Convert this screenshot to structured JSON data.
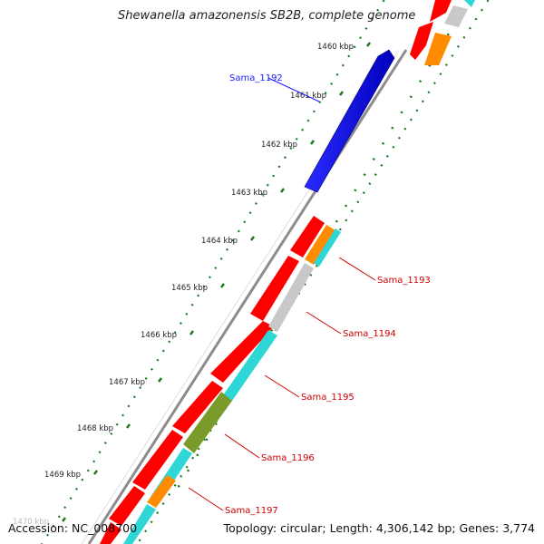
{
  "title": "Shewanella amazonensis SB2B, complete genome",
  "footer": {
    "accession": "Accession: NC_008700",
    "topology": "Topology: circular; Length: 4,306,142 bp; Genes: 3,774"
  },
  "ticks": [
    {
      "label": "1460 kbp"
    },
    {
      "label": "1461 kbp"
    },
    {
      "label": "1462 kbp"
    },
    {
      "label": "1463 kbp"
    },
    {
      "label": "1464 kbp"
    },
    {
      "label": "1465 kbp"
    },
    {
      "label": "1466 kbp"
    },
    {
      "label": "1467 kbp"
    },
    {
      "label": "1468 kbp"
    },
    {
      "label": "1469 kbp"
    },
    {
      "label": "1470 kbp"
    }
  ],
  "gene_labels": [
    {
      "name": "Sama_1192",
      "color": "#1a1aff"
    },
    {
      "name": "Sama_1193",
      "color": "#cc0000"
    },
    {
      "name": "Sama_1194",
      "color": "#cc0000"
    },
    {
      "name": "Sama_1195",
      "color": "#cc0000"
    },
    {
      "name": "Sama_1196",
      "color": "#cc0000"
    },
    {
      "name": "Sama_1197",
      "color": "#cc0000"
    }
  ],
  "colors": {
    "forward_gene": "#0000ee",
    "reverse_gene": "#ff0000",
    "cds_cyan": "#2fd6d6",
    "cds_orange": "#ff8c00",
    "cds_olive": "#7a9a2a",
    "cds_gray": "#c8c8c8",
    "backbone": "#8c8c8c",
    "tick_green": "#1a7a1a"
  }
}
